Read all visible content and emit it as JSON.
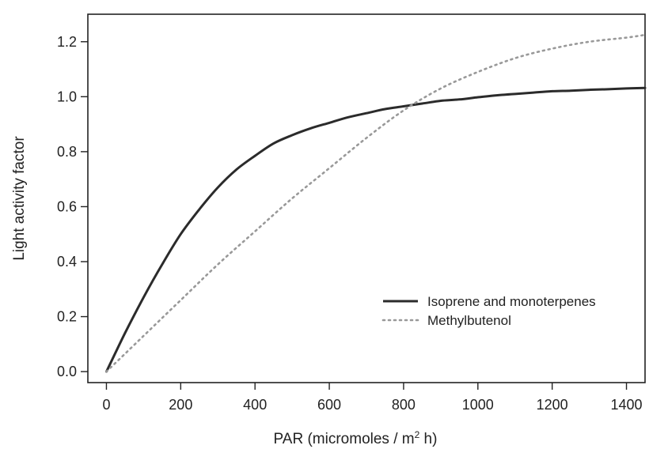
{
  "chart_data": {
    "type": "line",
    "title": "",
    "xlabel_main": "PAR  (micromoles / m",
    "xlabel_sup": "2",
    "xlabel_tail": " h)",
    "ylabel": "Light activity factor",
    "xlim": [
      -50,
      1450
    ],
    "ylim": [
      -0.04,
      1.3
    ],
    "x_ticks": [
      0,
      200,
      400,
      600,
      800,
      1000,
      1200,
      1400
    ],
    "y_ticks": [
      "0.0",
      "0.2",
      "0.4",
      "0.6",
      "0.8",
      "1.0",
      "1.2"
    ],
    "grid": false,
    "legend_position": "bottom-right",
    "series": [
      {
        "name": "Isoprene and monoterpenes",
        "style": "solid",
        "color": "#2b2b2b",
        "x": [
          0,
          50,
          100,
          150,
          200,
          250,
          300,
          350,
          400,
          450,
          500,
          550,
          600,
          650,
          700,
          750,
          800,
          850,
          900,
          950,
          1000,
          1050,
          1100,
          1150,
          1200,
          1250,
          1300,
          1350,
          1400,
          1450
        ],
        "y": [
          0.0,
          0.14,
          0.27,
          0.39,
          0.5,
          0.59,
          0.67,
          0.735,
          0.785,
          0.83,
          0.86,
          0.885,
          0.905,
          0.925,
          0.94,
          0.955,
          0.965,
          0.975,
          0.985,
          0.99,
          0.998,
          1.005,
          1.01,
          1.015,
          1.02,
          1.022,
          1.025,
          1.027,
          1.03,
          1.032
        ]
      },
      {
        "name": "Methylbutenol",
        "style": "dotted",
        "color": "#999999",
        "x": [
          0,
          100,
          200,
          300,
          400,
          500,
          600,
          700,
          800,
          900,
          1000,
          1100,
          1200,
          1300,
          1400,
          1450
        ],
        "y": [
          0.0,
          0.13,
          0.26,
          0.39,
          0.51,
          0.63,
          0.74,
          0.85,
          0.95,
          1.03,
          1.09,
          1.14,
          1.175,
          1.2,
          1.215,
          1.225
        ]
      }
    ]
  }
}
